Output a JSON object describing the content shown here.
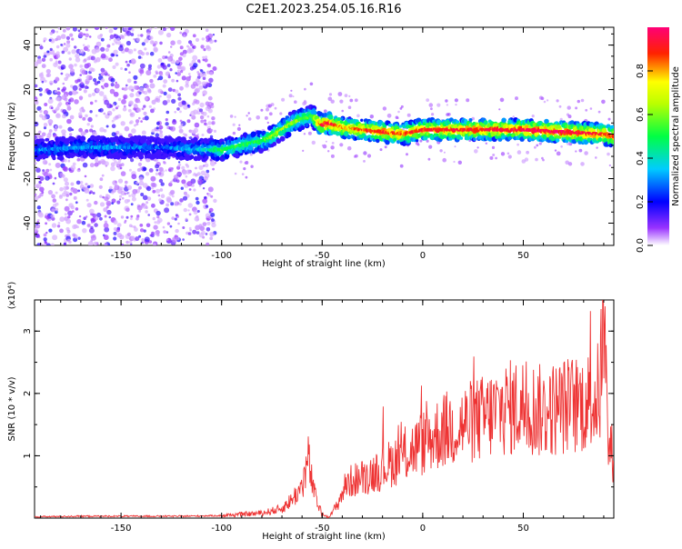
{
  "title": "C2E1.2023.254.05.16.R16",
  "chart_data": [
    {
      "type": "heatmap",
      "xlabel": "Height of straight line (km)",
      "ylabel": "Frequency (Hz)",
      "xlim": [
        -193,
        95
      ],
      "ylim": [
        -50,
        48
      ],
      "xticks": [
        -150,
        -100,
        -50,
        0,
        50
      ],
      "yticks": [
        -40,
        -20,
        0,
        20,
        40
      ],
      "colorbar": {
        "label": "Normalized spectral amplitude",
        "range": [
          0,
          1
        ],
        "ticks": [
          0.0,
          0.2,
          0.4,
          0.6,
          0.8
        ],
        "colors": [
          "#ffffff",
          "#8000ff",
          "#0000ff",
          "#00ffff",
          "#00ff00",
          "#ffff00",
          "#ff0000",
          "#ff0080"
        ]
      },
      "ridge": {
        "x": [
          -190,
          -170,
          -150,
          -130,
          -110,
          -100,
          -90,
          -80,
          -75,
          -70,
          -65,
          -60,
          -55,
          -50,
          -47,
          -40,
          -30,
          -20,
          -10,
          0,
          10,
          30,
          50,
          70,
          90,
          95
        ],
        "y": [
          -7,
          -6,
          -6,
          -6,
          -7,
          -7,
          -5,
          -3,
          -1,
          2,
          5,
          7,
          8,
          4,
          5,
          3,
          2,
          1,
          0,
          2,
          2,
          2,
          2,
          1,
          0,
          -1
        ],
        "amplitude": [
          0.3,
          0.3,
          0.3,
          0.25,
          0.35,
          0.5,
          0.5,
          0.5,
          0.6,
          0.6,
          0.6,
          0.55,
          0.55,
          0.9,
          0.95,
          0.8,
          0.85,
          0.9,
          0.85,
          0.9,
          0.9,
          0.9,
          0.95,
          0.95,
          0.9,
          0.85
        ]
      }
    },
    {
      "type": "line",
      "xlabel": "Height of straight line (km)",
      "ylabel": "SNR (10 * v/v)",
      "scale_note": "(x10⁴)",
      "xlim": [
        -193,
        95
      ],
      "ylim": [
        0,
        3.5
      ],
      "xticks": [
        -150,
        -100,
        -50,
        0,
        50
      ],
      "yticks": [
        1,
        2,
        3
      ],
      "color": "#ee3333",
      "x": [
        -193,
        -170,
        -150,
        -120,
        -100,
        -90,
        -80,
        -70,
        -65,
        -60,
        -57,
        -54,
        -50,
        -46,
        -42,
        -38,
        -35,
        -30,
        -20,
        -10,
        0,
        10,
        20,
        30,
        40,
        50,
        60,
        70,
        80,
        85,
        88,
        90,
        92,
        95
      ],
      "y": [
        0.02,
        0.03,
        0.03,
        0.03,
        0.04,
        0.06,
        0.08,
        0.15,
        0.3,
        0.5,
        0.95,
        0.4,
        0.05,
        0.03,
        0.25,
        0.55,
        0.6,
        0.65,
        0.8,
        1.0,
        1.2,
        1.4,
        1.5,
        1.6,
        1.75,
        1.8,
        1.7,
        1.8,
        1.85,
        1.9,
        2.0,
        3.4,
        1.2,
        1.0
      ]
    }
  ]
}
